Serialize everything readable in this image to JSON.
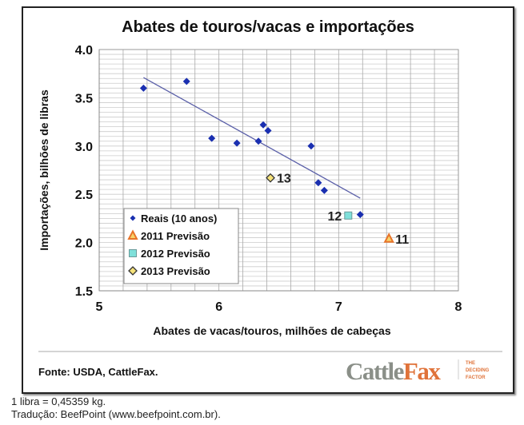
{
  "chart_data": {
    "type": "scatter",
    "title": "Abates de touros/vacas e importações",
    "xlabel": "Abates de vacas/touros, milhões de cabeças",
    "ylabel": "Importações, bilhões de libras",
    "xlim": [
      5,
      8
    ],
    "ylim": [
      1.5,
      4.0
    ],
    "xticks": [
      "5",
      "6",
      "7",
      "8"
    ],
    "yticks": [
      "1.5",
      "2.0",
      "2.5",
      "3.0",
      "3.5",
      "4.0"
    ],
    "grid": true,
    "legend_position": "bottom-left",
    "series": [
      {
        "name": "Reais (10 anos)",
        "marker": "diamond",
        "color": "#1a2fb0",
        "points": [
          [
            5.37,
            3.6
          ],
          [
            5.73,
            3.67
          ],
          [
            5.94,
            3.08
          ],
          [
            6.15,
            3.03
          ],
          [
            6.33,
            3.05
          ],
          [
            6.37,
            3.22
          ],
          [
            6.41,
            3.16
          ],
          [
            6.77,
            3.0
          ],
          [
            6.83,
            2.62
          ],
          [
            6.88,
            2.54
          ],
          [
            7.18,
            2.29
          ]
        ]
      },
      {
        "name": "2011 Previsão",
        "marker": "triangle",
        "color": "#e8742a",
        "fill": "#f7d36a",
        "points": [
          [
            7.42,
            2.04
          ]
        ],
        "label": "11"
      },
      {
        "name": "2012 Previsão",
        "marker": "square",
        "color": "#6a9a9a",
        "fill": "#7fe0da",
        "points": [
          [
            7.08,
            2.28
          ]
        ],
        "label": "12"
      },
      {
        "name": "2013 Previsão",
        "marker": "diamond-open",
        "color": "#333",
        "fill": "#f5e27a",
        "points": [
          [
            6.43,
            2.67
          ]
        ],
        "label": "13"
      }
    ],
    "trendline": [
      [
        5.37,
        3.71
      ],
      [
        7.18,
        2.46
      ]
    ]
  },
  "footer": {
    "source": "Fonte: USDA, CattleFax.",
    "logo_a": "Cattle",
    "logo_b": "Fax",
    "tagline": [
      "THE",
      "DECIDING",
      "FACTOR"
    ]
  },
  "notes": [
    "1 libra = 0,45359 kg.",
    "Tradução: BeefPoint (www.beefpoint.com.br)."
  ]
}
